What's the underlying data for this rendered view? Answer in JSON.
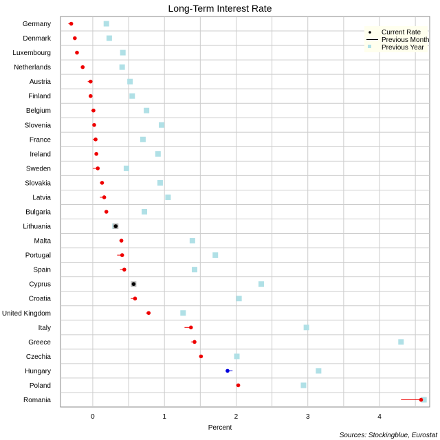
{
  "chart_data": {
    "type": "scatter",
    "title": "Long-Term Interest Rate",
    "xlabel": "Percent",
    "ylabel": "",
    "xlim": [
      -0.45,
      4.7
    ],
    "xticks": [
      0,
      1,
      2,
      3,
      4
    ],
    "x_minor_step": 0.5,
    "grid": true,
    "legend_position": "top-right",
    "legend": {
      "current": "Current Rate",
      "previous_month": "Previous Month",
      "previous_year": "Previous Year"
    },
    "source": "Sources: Stockingblue, Eurostat",
    "colors": {
      "increase": "#ee0000",
      "decrease": "#0000dd",
      "unchanged": "#000000",
      "previous_year": "#b0e0e6",
      "grid": "#cccccc",
      "legend_bg": "#ffffee"
    },
    "categories": [
      "Germany",
      "Denmark",
      "Luxembourg",
      "Netherlands",
      "Austria",
      "Finland",
      "Belgium",
      "Slovenia",
      "France",
      "Ireland",
      "Sweden",
      "Slovakia",
      "Latvia",
      "Bulgaria",
      "Lithuania",
      "Malta",
      "Portugal",
      "Spain",
      "Cyprus",
      "Croatia",
      "United Kingdom",
      "Italy",
      "Greece",
      "Czechia",
      "Hungary",
      "Poland",
      "Romania"
    ],
    "series": [
      {
        "name": "Current Rate",
        "values": [
          -0.3,
          -0.25,
          -0.22,
          -0.14,
          -0.03,
          -0.03,
          0.01,
          0.02,
          0.04,
          0.05,
          0.07,
          0.13,
          0.16,
          0.19,
          0.32,
          0.4,
          0.41,
          0.44,
          0.57,
          0.59,
          0.78,
          1.37,
          1.42,
          1.51,
          1.88,
          2.03,
          4.58
        ]
      },
      {
        "name": "Previous Month",
        "values": [
          -0.34,
          -0.27,
          -0.23,
          -0.17,
          -0.07,
          -0.05,
          -0.02,
          0.0,
          0.0,
          0.03,
          0.0,
          0.1,
          0.1,
          0.17,
          0.32,
          0.37,
          0.34,
          0.38,
          0.57,
          0.53,
          0.74,
          1.28,
          1.37,
          1.49,
          1.95,
          2.02,
          4.3
        ]
      },
      {
        "name": "Previous Year",
        "values": [
          0.19,
          0.23,
          0.42,
          0.41,
          0.52,
          0.55,
          0.75,
          0.96,
          0.7,
          0.91,
          0.47,
          0.94,
          1.05,
          0.72,
          0.31,
          1.39,
          1.71,
          1.42,
          2.35,
          2.04,
          1.26,
          2.98,
          4.3,
          2.01,
          3.15,
          2.94,
          4.62
        ]
      }
    ]
  }
}
